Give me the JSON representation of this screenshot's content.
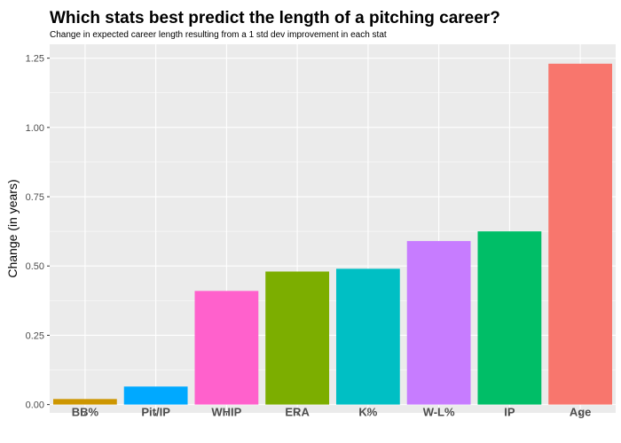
{
  "chart_data": {
    "type": "bar",
    "title": "Which stats best predict the length of a pitching career?",
    "subtitle": "Change in expected career length resulting from a 1 std dev improvement in each stat",
    "xlabel": "",
    "ylabel": "Change (in years)",
    "categories": [
      "BB%",
      "Pit/IP",
      "WHIP",
      "ERA",
      "K%",
      "W-L%",
      "IP",
      "Age"
    ],
    "values": [
      0.02,
      0.065,
      0.41,
      0.48,
      0.49,
      0.59,
      0.625,
      1.23
    ],
    "colors": [
      "#CD9600",
      "#00A9FF",
      "#FF61CC",
      "#7CAE00",
      "#00BFC4",
      "#C77CFF",
      "#00BE67",
      "#F8766D"
    ],
    "ylim": [
      -0.03,
      1.3
    ],
    "yticks": [
      0.0,
      0.25,
      0.5,
      0.75,
      1.0,
      1.25
    ],
    "ytick_labels": [
      "0.00",
      "0.25",
      "0.50",
      "0.75",
      "1.00",
      "1.25"
    ],
    "grid": true,
    "legend": "none",
    "panel_background": "#EBEBEB",
    "grid_color": "#FFFFFF"
  }
}
